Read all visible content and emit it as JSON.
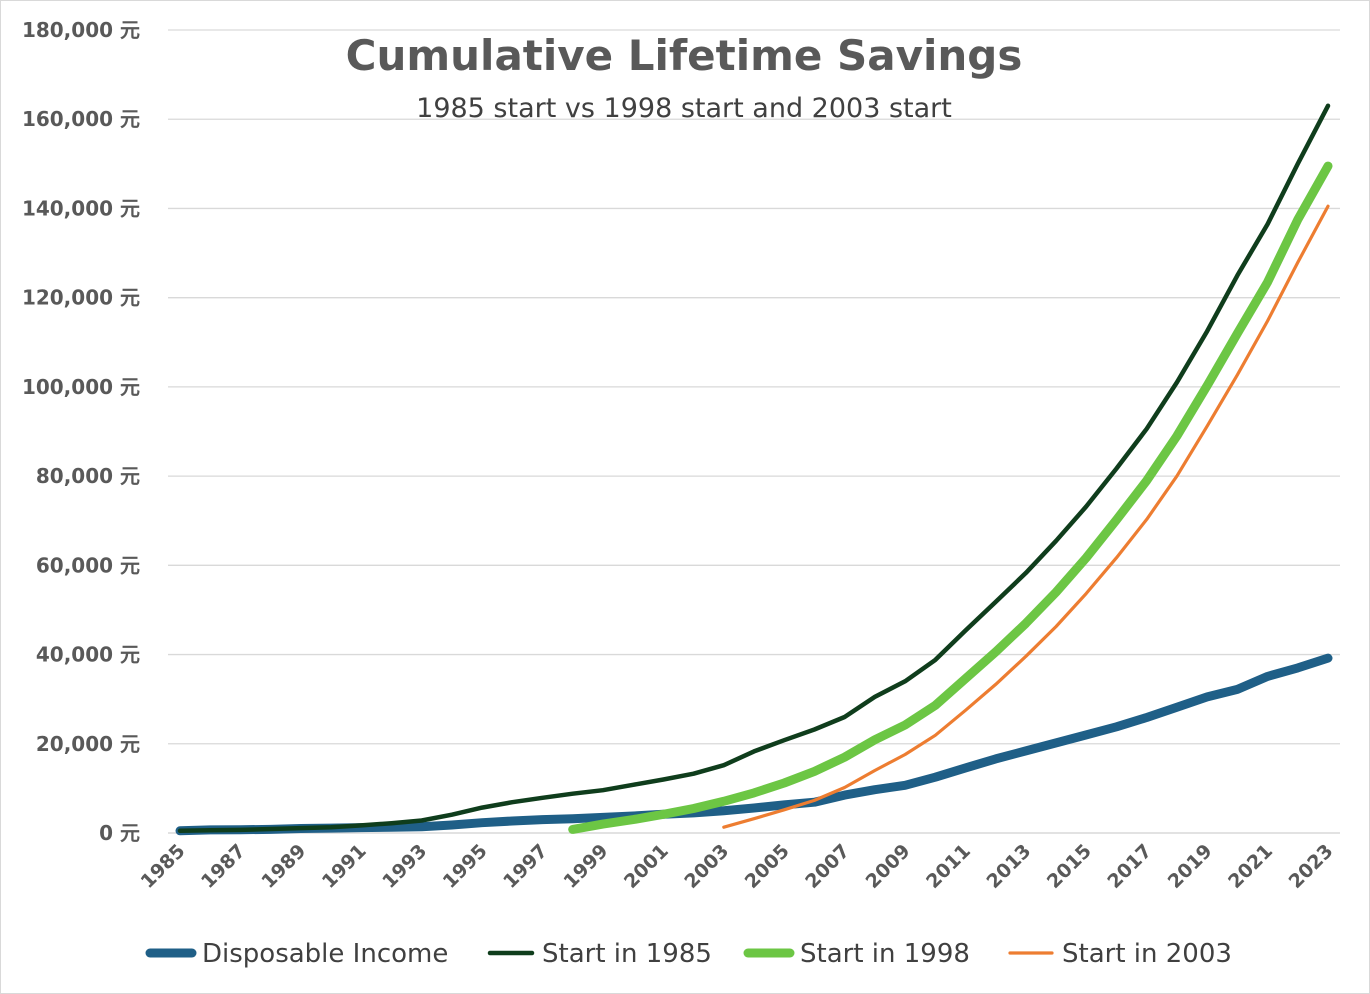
{
  "chart_data": {
    "type": "line",
    "title": "Cumulative Lifetime Savings",
    "subtitle": "1985 start vs 1998 start and 2003 start",
    "xlabel": "",
    "ylabel": "",
    "x": [
      1985,
      1986,
      1987,
      1988,
      1989,
      1990,
      1991,
      1992,
      1993,
      1994,
      1995,
      1996,
      1997,
      1998,
      1999,
      2000,
      2001,
      2002,
      2003,
      2004,
      2005,
      2006,
      2007,
      2008,
      2009,
      2010,
      2011,
      2012,
      2013,
      2014,
      2015,
      2016,
      2017,
      2018,
      2019,
      2020,
      2021,
      2022,
      2023
    ],
    "x_tick_labels": [
      "1985",
      "1987",
      "1989",
      "1991",
      "1993",
      "1995",
      "1997",
      "1999",
      "2001",
      "2003",
      "2005",
      "2007",
      "2009",
      "2011",
      "2013",
      "2015",
      "2017",
      "2019",
      "2021",
      "2023"
    ],
    "ylim": [
      0,
      180000
    ],
    "y_ticks": [
      0,
      20000,
      40000,
      60000,
      80000,
      100000,
      120000,
      140000,
      160000,
      180000
    ],
    "y_tick_labels": [
      "0 元",
      "20,000 元",
      "40,000 元",
      "60,000 元",
      "80,000 元",
      "100,000 元",
      "120,000 元",
      "140,000 元",
      "160,000 元",
      "180,000 元"
    ],
    "grid": "horizontal",
    "legend_position": "bottom",
    "series": [
      {
        "name": "Disposable Income",
        "color": "#1f5f87",
        "line_weight": "thick",
        "values": [
          500,
          700,
          750,
          800,
          1000,
          1100,
          1200,
          1300,
          1400,
          1800,
          2300,
          2700,
          3000,
          3200,
          3500,
          3800,
          4200,
          4500,
          5000,
          5600,
          6300,
          6900,
          8500,
          9700,
          10700,
          12500,
          14600,
          16600,
          18400,
          20200,
          22000,
          23800,
          25900,
          28200,
          30500,
          32200,
          35100,
          37000,
          39200
        ]
      },
      {
        "name": "Start in 1985",
        "color": "#0f3d1c",
        "line_weight": "medium",
        "values": [
          500,
          600,
          700,
          900,
          1100,
          1300,
          1700,
          2200,
          2800,
          4100,
          5700,
          6900,
          7900,
          8800,
          9600,
          10800,
          12000,
          13300,
          15200,
          18300,
          20800,
          23200,
          26000,
          30500,
          34000,
          38800,
          45400,
          51800,
          58300,
          65500,
          73200,
          81700,
          90600,
          101000,
          112500,
          125000,
          136500,
          150000,
          163000
        ]
      },
      {
        "name": "Start in 1998",
        "color": "#6cc644",
        "line_weight": "thick",
        "values": [
          null,
          null,
          null,
          null,
          null,
          null,
          null,
          null,
          null,
          null,
          null,
          null,
          null,
          800,
          2000,
          3000,
          4200,
          5500,
          7100,
          9000,
          11200,
          13800,
          17000,
          20900,
          24200,
          28600,
          34600,
          40600,
          47000,
          54000,
          61700,
          70200,
          79000,
          89000,
          100300,
          112000,
          123500,
          137500,
          149500
        ]
      },
      {
        "name": "Start in 2003",
        "color": "#ed7d31",
        "line_weight": "thin",
        "values": [
          null,
          null,
          null,
          null,
          null,
          null,
          null,
          null,
          null,
          null,
          null,
          null,
          null,
          null,
          null,
          null,
          null,
          null,
          1300,
          3200,
          5200,
          7300,
          10200,
          14000,
          17600,
          21900,
          27500,
          33300,
          39600,
          46300,
          53700,
          61700,
          70300,
          80000,
          91200,
          102700,
          114800,
          127900,
          140500
        ]
      }
    ]
  }
}
